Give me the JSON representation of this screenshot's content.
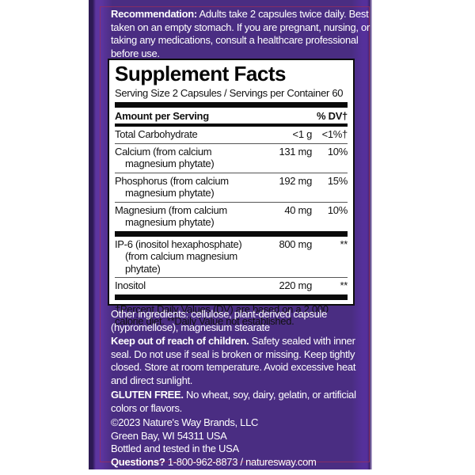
{
  "recommendation": {
    "lead": "Recommendation:",
    "text": " Adults take 2 capsules twice daily. Best taken on an empty stomach. If you are pregnant, nursing, or taking any medications, consult a healthcare professional before use."
  },
  "supplement_facts": {
    "title": "Supplement Facts",
    "serving_line": "Serving Size 2 Capsules / Servings per Container 60",
    "header": {
      "amount_label": "Amount per Serving",
      "dv_label": "% DV†"
    },
    "rows": [
      {
        "name": "Total Carbohydrate",
        "name2": "",
        "amount": "<1 g",
        "dv": "<1%†"
      },
      {
        "name": "Calcium (from calcium",
        "name2": "magnesium phytate)",
        "amount": "131 mg",
        "dv": "10%"
      },
      {
        "name": "Phosphorus (from calcium",
        "name2": "magnesium phytate)",
        "amount": "192 mg",
        "dv": "15%"
      },
      {
        "name": "Magnesium (from calcium",
        "name2": "magnesium phytate)",
        "amount": "40 mg",
        "dv": "10%"
      }
    ],
    "rows2": [
      {
        "name": "IP-6 (inositol hexaphosphate)",
        "name2": "(from calcium magnesium phytate)",
        "amount": "800 mg",
        "dv": "**"
      },
      {
        "name": "Inositol",
        "name2": "",
        "amount": "220 mg",
        "dv": "**"
      }
    ],
    "footnote": "†Percent Daily Values (DV) are based on a 2,000 calorie diet. **Daily Value not established."
  },
  "other_ingredients": "Other ingredients: cellulose, plant-derived capsule (hypromellose), magnesium stearate",
  "keep_out": {
    "lead": "Keep out of reach of children.",
    "text": " Safety sealed with inner seal. Do not use if seal is broken or missing. Keep tightly closed. Store at room temperature. Avoid excessive heat and direct sunlight."
  },
  "gluten_free": {
    "lead": "GLUTEN FREE.",
    "text": " No wheat, soy, dairy, gelatin, or artificial colors or flavors."
  },
  "company": {
    "line1": "©2023 Nature's Way Brands, LLC",
    "line2": "Green Bay, WI 54311 USA",
    "line3": "Bottled and tested in the USA",
    "questions_lead": "Questions?",
    "questions_text": " 1-800-962-8873 / naturesway.com"
  },
  "colors": {
    "label_purple": "#4a2d82",
    "edge_dark_purple": "#2d1a54",
    "edge_bright_purple": "#5d35a0",
    "inner_border_maroon": "#9b2d5a",
    "panel_bg": "#ffffff",
    "panel_text": "#111111",
    "label_text": "#ffffff"
  }
}
